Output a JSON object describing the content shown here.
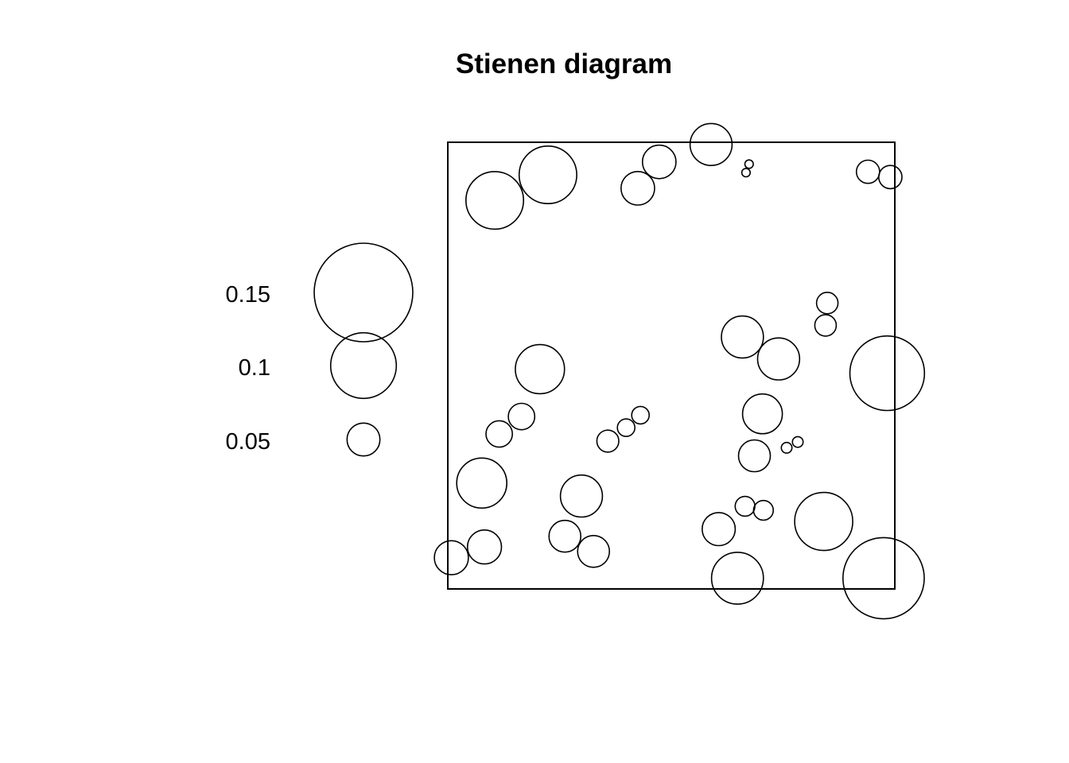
{
  "chart_data": {
    "type": "scatter",
    "title": "Stienen diagram",
    "xlabel": "",
    "ylabel": "",
    "window": {
      "xlim": [
        0,
        1
      ],
      "ylim": [
        0,
        1
      ]
    },
    "grid": false,
    "legend": {
      "placement": "left",
      "entries": [
        {
          "label": "0.15",
          "value": 0.15
        },
        {
          "label": "0.1",
          "value": 0.1
        },
        {
          "label": "0.05",
          "value": 0.05
        }
      ]
    },
    "stroke_color": "#000000",
    "points": [
      {
        "x": 0.224,
        "y": 0.927,
        "d": 0.129
      },
      {
        "x": 0.105,
        "y": 0.87,
        "d": 0.129
      },
      {
        "x": 0.473,
        "y": 0.956,
        "d": 0.075
      },
      {
        "x": 0.425,
        "y": 0.897,
        "d": 0.075
      },
      {
        "x": 0.589,
        "y": 0.995,
        "d": 0.094
      },
      {
        "x": 0.674,
        "y": 0.951,
        "d": 0.019
      },
      {
        "x": 0.667,
        "y": 0.932,
        "d": 0.019
      },
      {
        "x": 0.94,
        "y": 0.934,
        "d": 0.052
      },
      {
        "x": 0.99,
        "y": 0.922,
        "d": 0.052
      },
      {
        "x": 0.849,
        "y": 0.64,
        "d": 0.048
      },
      {
        "x": 0.845,
        "y": 0.59,
        "d": 0.048
      },
      {
        "x": 0.659,
        "y": 0.564,
        "d": 0.094
      },
      {
        "x": 0.74,
        "y": 0.515,
        "d": 0.094
      },
      {
        "x": 0.983,
        "y": 0.483,
        "d": 0.167
      },
      {
        "x": 0.206,
        "y": 0.492,
        "d": 0.11
      },
      {
        "x": 0.165,
        "y": 0.386,
        "d": 0.059
      },
      {
        "x": 0.115,
        "y": 0.347,
        "d": 0.059
      },
      {
        "x": 0.431,
        "y": 0.389,
        "d": 0.039
      },
      {
        "x": 0.399,
        "y": 0.361,
        "d": 0.039
      },
      {
        "x": 0.358,
        "y": 0.331,
        "d": 0.049
      },
      {
        "x": 0.704,
        "y": 0.392,
        "d": 0.089
      },
      {
        "x": 0.686,
        "y": 0.298,
        "d": 0.071
      },
      {
        "x": 0.783,
        "y": 0.329,
        "d": 0.024
      },
      {
        "x": 0.758,
        "y": 0.316,
        "d": 0.024
      },
      {
        "x": 0.076,
        "y": 0.237,
        "d": 0.112
      },
      {
        "x": 0.299,
        "y": 0.208,
        "d": 0.094
      },
      {
        "x": 0.665,
        "y": 0.185,
        "d": 0.044
      },
      {
        "x": 0.706,
        "y": 0.176,
        "d": 0.044
      },
      {
        "x": 0.841,
        "y": 0.151,
        "d": 0.13
      },
      {
        "x": 0.606,
        "y": 0.134,
        "d": 0.074
      },
      {
        "x": 0.262,
        "y": 0.118,
        "d": 0.071
      },
      {
        "x": 0.326,
        "y": 0.084,
        "d": 0.071
      },
      {
        "x": 0.082,
        "y": 0.094,
        "d": 0.076
      },
      {
        "x": 0.008,
        "y": 0.07,
        "d": 0.076
      },
      {
        "x": 0.648,
        "y": 0.024,
        "d": 0.116
      },
      {
        "x": 0.975,
        "y": 0.024,
        "d": 0.182
      }
    ]
  }
}
